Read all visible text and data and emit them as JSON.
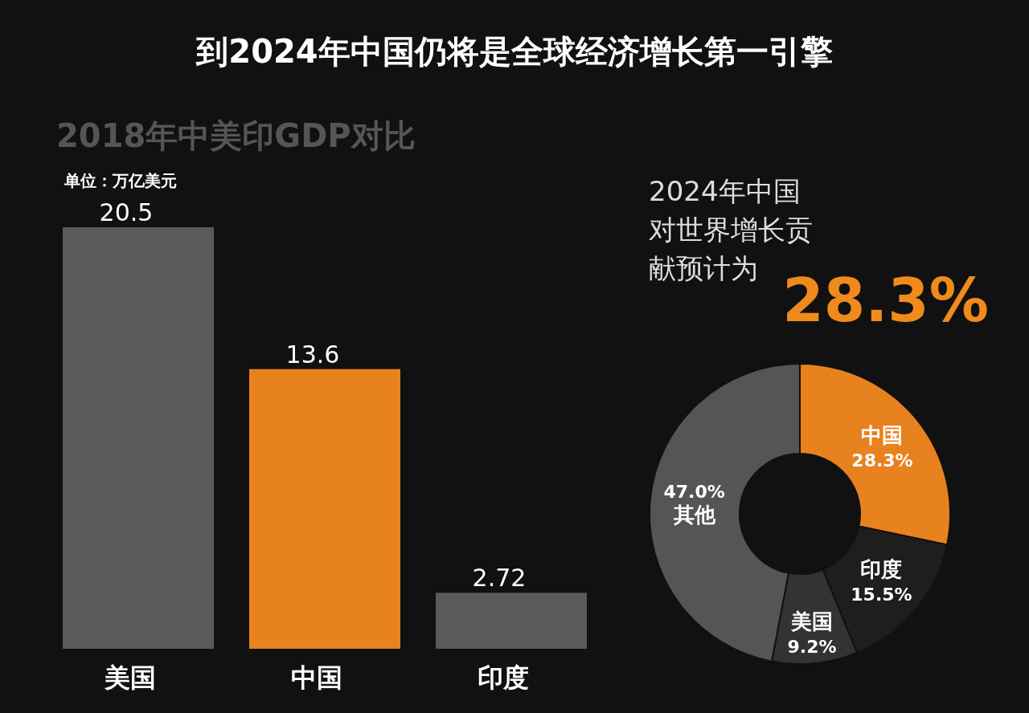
{
  "chart_data": [
    {
      "type": "bar",
      "title": "到2024年中国仍将是全球经济增长第一引擎",
      "subtitle": "2018年中美印GDP对比",
      "annotations": [
        "单位：万亿美元"
      ],
      "categories": [
        "美国",
        "中国",
        "印度"
      ],
      "values": [
        20.5,
        13.6,
        2.72
      ],
      "colors": [
        "#5a5a5a",
        "#e8821e",
        "#5a5a5a"
      ],
      "data_labels": true
    },
    {
      "type": "donut",
      "title": "2024年中国对世界增长贡献预计为",
      "annotations": [
        "28.3%"
      ],
      "categories": [
        "中国",
        "印度",
        "美国",
        "其他"
      ],
      "values": [
        28.3,
        15.5,
        9.2,
        47.0
      ],
      "colors": [
        "#e8821e",
        "#1e1e1e",
        "#333333",
        "#555555"
      ],
      "value_labels": [
        "28.3%",
        "15.5%",
        "9.2%",
        "47.0%"
      ]
    }
  ]
}
